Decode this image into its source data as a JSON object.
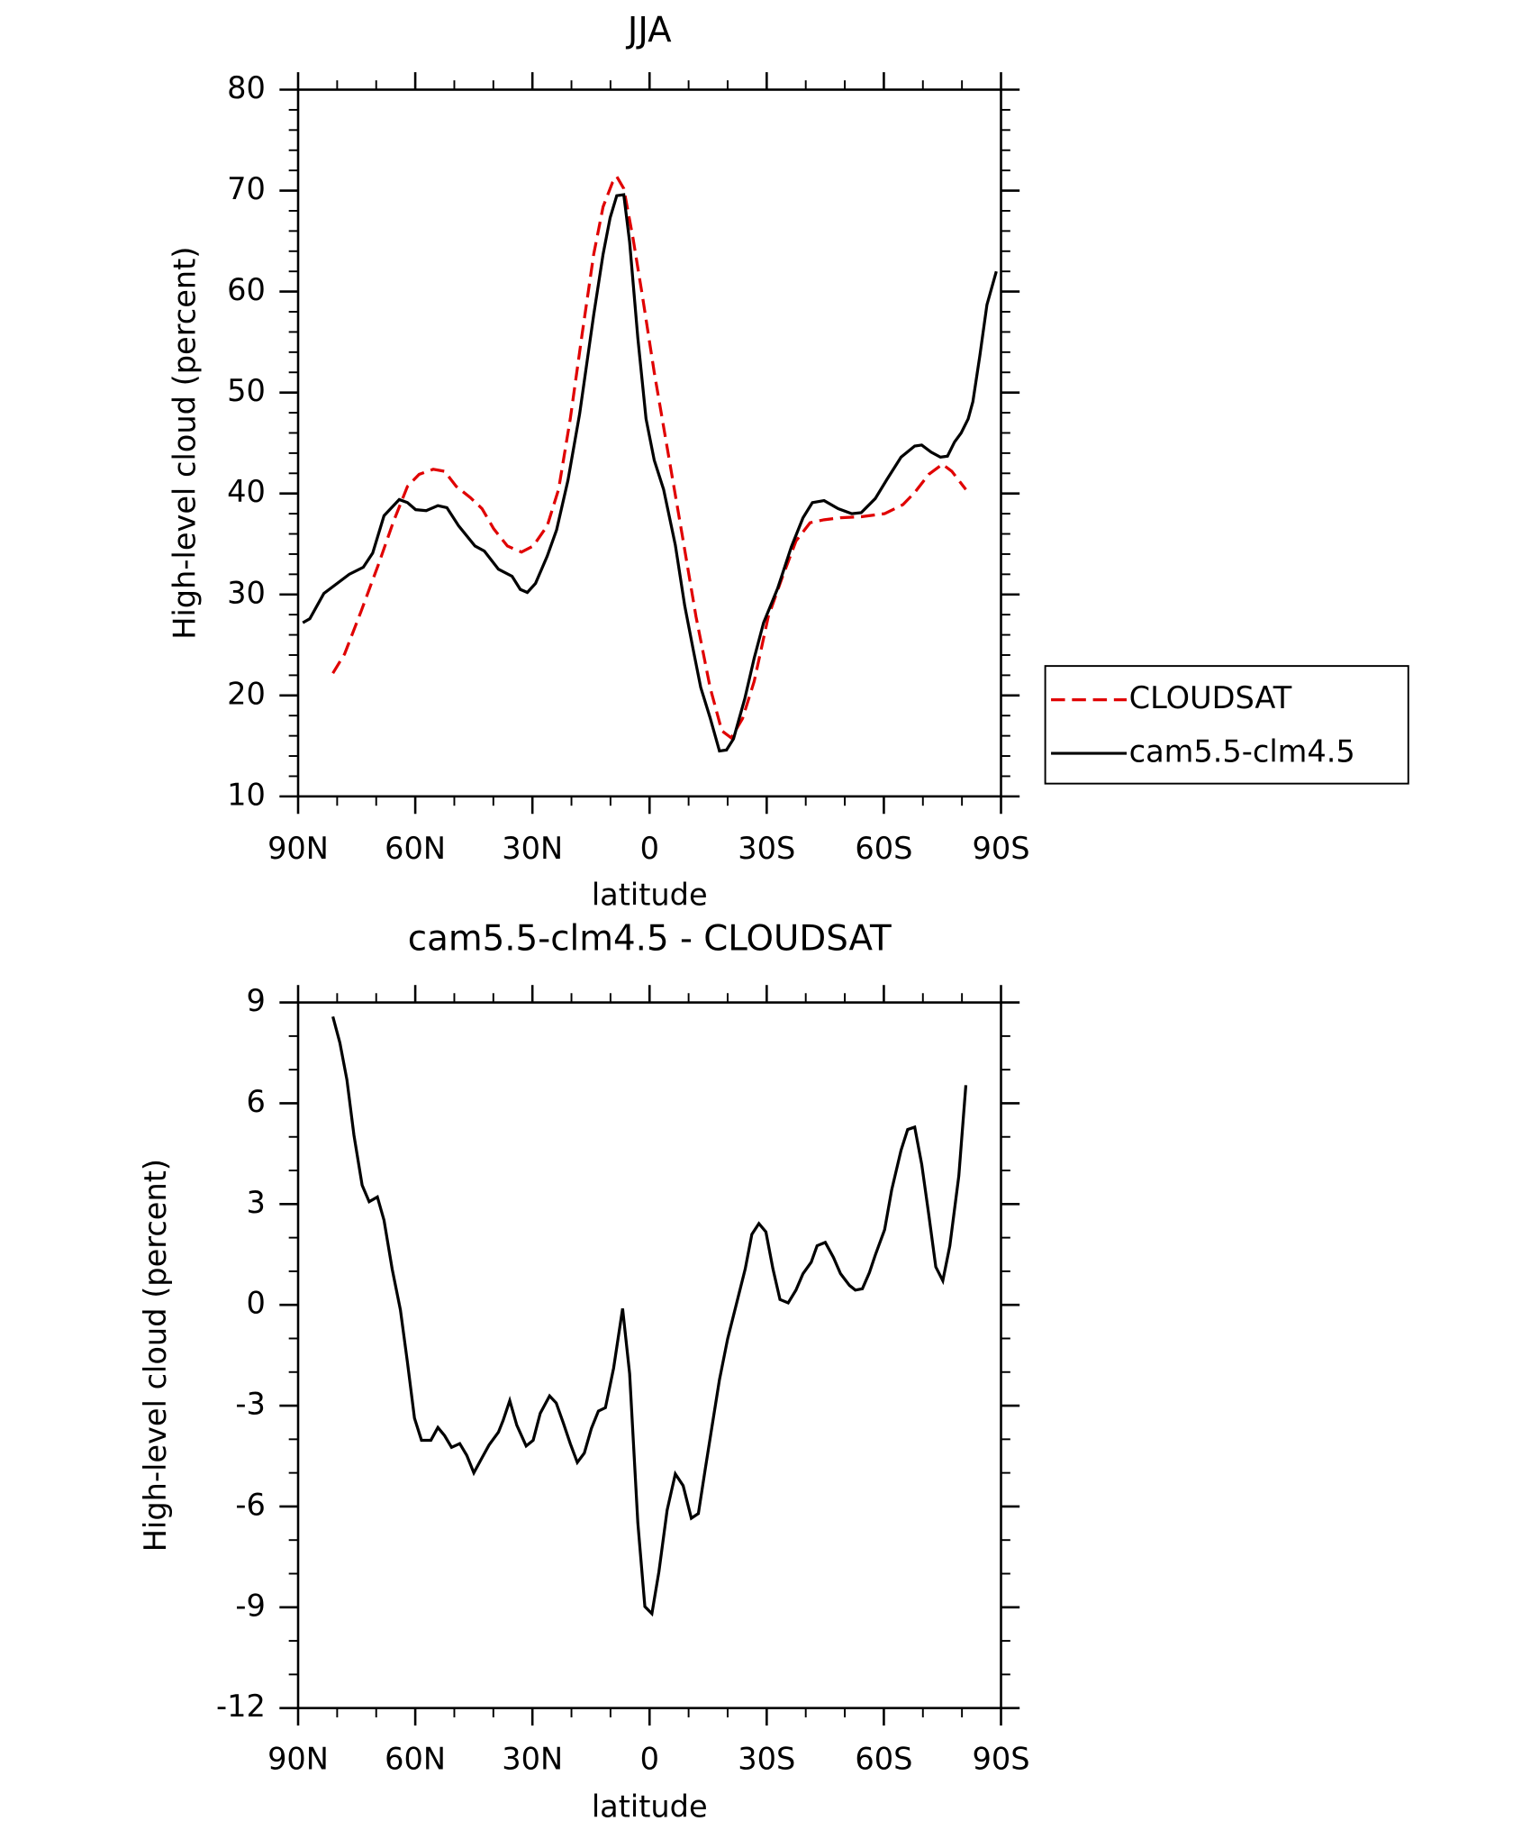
{
  "chart_data": [
    {
      "type": "line",
      "title": "JJA",
      "xlabel": "latitude",
      "ylabel": "High-level cloud (percent)",
      "xlim": [
        90,
        -90
      ],
      "xticks": [
        {
          "value": 90,
          "label": "90N"
        },
        {
          "value": 60,
          "label": "60N"
        },
        {
          "value": 30,
          "label": "30N"
        },
        0,
        {
          "value": -30,
          "label": "30S"
        },
        {
          "value": -60,
          "label": "60S"
        },
        {
          "value": -90,
          "label": "90S"
        }
      ],
      "ylim": [
        10,
        80
      ],
      "yticks": [
        10,
        20,
        30,
        40,
        50,
        60,
        70,
        80
      ],
      "grid": false,
      "legend": "right",
      "series": [
        {
          "name": "CLOUDSAT",
          "color": "#e00000",
          "dashed": true,
          "x": [
            81.1,
            78.1,
            73.9,
            69.4,
            65.6,
            62.0,
            59.0,
            55.4,
            52.5,
            49.5,
            45.9,
            42.9,
            39.9,
            36.4,
            32.8,
            29.8,
            26.2,
            23.3,
            20.3,
            17.3,
            14.3,
            11.9,
            9.5,
            8.4,
            6.6,
            4.2,
            1.8,
            -1.2,
            -4.8,
            -8.4,
            -11.9,
            -15.5,
            -18.5,
            -20.9,
            -23.8,
            -26.8,
            -30.4,
            -33.9,
            -37.5,
            -41.1,
            -44.7,
            -48.9,
            -54.2,
            -60.2,
            -64.9,
            -67.9,
            -71.5,
            -75.0,
            -77.4,
            -81.0
          ],
          "values": [
            22.2,
            24.1,
            28.3,
            33.0,
            37.2,
            40.7,
            41.9,
            42.4,
            42.2,
            40.7,
            39.6,
            38.5,
            36.5,
            34.8,
            34.2,
            34.8,
            36.8,
            40.4,
            47.4,
            55.7,
            63.7,
            68.4,
            70.8,
            71.4,
            70.2,
            65.2,
            59.5,
            52.0,
            43.9,
            35.8,
            27.8,
            20.8,
            16.5,
            15.8,
            17.7,
            21.4,
            27.8,
            31.6,
            35.3,
            37.1,
            37.4,
            37.6,
            37.7,
            38.0,
            38.9,
            40.1,
            41.9,
            42.9,
            42.2,
            40.4
          ]
        },
        {
          "name": "cam5.5-clm4.5",
          "color": "#000000",
          "dashed": false,
          "x": [
            88.8,
            87.0,
            83.4,
            76.9,
            73.3,
            70.9,
            68.0,
            64.1,
            62.0,
            59.9,
            57.2,
            54.2,
            51.9,
            48.9,
            44.7,
            42.3,
            38.7,
            35.2,
            33.1,
            31.3,
            29.2,
            26.2,
            23.8,
            20.9,
            17.9,
            14.3,
            11.9,
            10.1,
            8.4,
            6.6,
            5.1,
            3.0,
            0.9,
            -1.2,
            -3.6,
            -6.6,
            -9.0,
            -11.3,
            -13.1,
            -15.5,
            -17.9,
            -19.7,
            -21.5,
            -24.4,
            -26.8,
            -29.2,
            -32.8,
            -36.3,
            -39.3,
            -41.7,
            -44.7,
            -48.3,
            -51.8,
            -54.2,
            -57.8,
            -60.8,
            -64.4,
            -67.9,
            -69.7,
            -72.1,
            -74.5,
            -76.3,
            -78.1,
            -79.8,
            -81.6,
            -82.8,
            -84.6,
            -86.4,
            -88.8
          ],
          "values": [
            27.2,
            27.6,
            30.1,
            32.0,
            32.7,
            34.1,
            37.8,
            39.4,
            39.1,
            38.4,
            38.3,
            38.8,
            38.6,
            36.8,
            34.8,
            34.3,
            32.5,
            31.8,
            30.5,
            30.2,
            31.1,
            33.8,
            36.4,
            41.3,
            47.9,
            57.7,
            63.7,
            67.3,
            69.5,
            69.6,
            64.9,
            55.4,
            47.4,
            43.3,
            40.4,
            34.9,
            28.9,
            24.3,
            20.8,
            17.8,
            14.5,
            14.6,
            15.7,
            19.7,
            23.7,
            27.2,
            30.6,
            34.7,
            37.6,
            39.1,
            39.3,
            38.5,
            38.0,
            38.1,
            39.5,
            41.4,
            43.6,
            44.7,
            44.8,
            44.1,
            43.6,
            43.7,
            45.1,
            46.0,
            47.4,
            49.1,
            53.7,
            58.7,
            62.0
          ]
        }
      ]
    },
    {
      "type": "line",
      "title": "cam5.5-clm4.5 - CLOUDSAT",
      "xlabel": "latitude",
      "ylabel": "High-level cloud (percent)",
      "xlim": [
        90,
        -90
      ],
      "xticks": [
        {
          "value": 90,
          "label": "90N"
        },
        {
          "value": 60,
          "label": "60N"
        },
        {
          "value": 30,
          "label": "30N"
        },
        0,
        {
          "value": -30,
          "label": "30S"
        },
        {
          "value": -60,
          "label": "60S"
        },
        {
          "value": -90,
          "label": "90S"
        }
      ],
      "ylim": [
        -12,
        9
      ],
      "yticks": [
        -12,
        -9,
        -6,
        -3,
        0,
        3,
        6,
        9
      ],
      "grid": false,
      "series": [
        {
          "color": "#000000",
          "dashed": false,
          "x": [
            81.1,
            79.3,
            77.5,
            75.7,
            73.6,
            71.8,
            69.7,
            68.0,
            65.9,
            63.8,
            62.0,
            60.2,
            58.4,
            56.0,
            54.2,
            52.5,
            50.7,
            48.6,
            46.8,
            45.0,
            42.9,
            41.1,
            38.7,
            37.5,
            35.8,
            34.0,
            31.6,
            29.8,
            28.0,
            25.6,
            23.9,
            22.1,
            20.3,
            18.5,
            16.7,
            14.9,
            13.1,
            11.3,
            9.2,
            6.9,
            5.1,
            3.0,
            1.2,
            -0.6,
            -2.4,
            -4.5,
            -6.6,
            -8.6,
            -10.7,
            -12.5,
            -14.3,
            -16.1,
            -17.9,
            -20.0,
            -22.1,
            -24.5,
            -26.2,
            -28.0,
            -29.8,
            -31.6,
            -33.4,
            -35.5,
            -37.5,
            -39.3,
            -41.4,
            -42.9,
            -45.0,
            -47.1,
            -48.9,
            -51.2,
            -52.7,
            -54.5,
            -56.3,
            -57.8,
            -60.2,
            -62.0,
            -64.4,
            -66.1,
            -67.9,
            -69.7,
            -71.5,
            -73.3,
            -75.1,
            -76.9,
            -79.2,
            -81.0
          ],
          "values": [
            8.58,
            7.8,
            6.7,
            5.05,
            3.56,
            3.07,
            3.21,
            2.52,
            1.06,
            -0.15,
            -1.71,
            -3.37,
            -4.03,
            -4.03,
            -3.65,
            -3.89,
            -4.24,
            -4.13,
            -4.48,
            -5.0,
            -4.55,
            -4.17,
            -3.79,
            -3.44,
            -2.85,
            -3.58,
            -4.2,
            -4.03,
            -3.23,
            -2.71,
            -2.92,
            -3.51,
            -4.13,
            -4.69,
            -4.41,
            -3.68,
            -3.16,
            -3.06,
            -1.88,
            -0.11,
            -2.05,
            -6.49,
            -8.98,
            -9.19,
            -7.94,
            -6.11,
            -5.03,
            -5.38,
            -6.35,
            -6.21,
            -4.86,
            -3.54,
            -2.23,
            -1.01,
            -0.04,
            1.07,
            2.1,
            2.42,
            2.17,
            1.07,
            0.16,
            0.06,
            0.44,
            0.93,
            1.27,
            1.76,
            1.86,
            1.41,
            0.93,
            0.58,
            0.44,
            0.48,
            0.96,
            1.48,
            2.24,
            3.42,
            4.6,
            5.22,
            5.29,
            4.18,
            2.69,
            1.13,
            0.72,
            1.76,
            3.84,
            6.54
          ]
        }
      ]
    }
  ]
}
